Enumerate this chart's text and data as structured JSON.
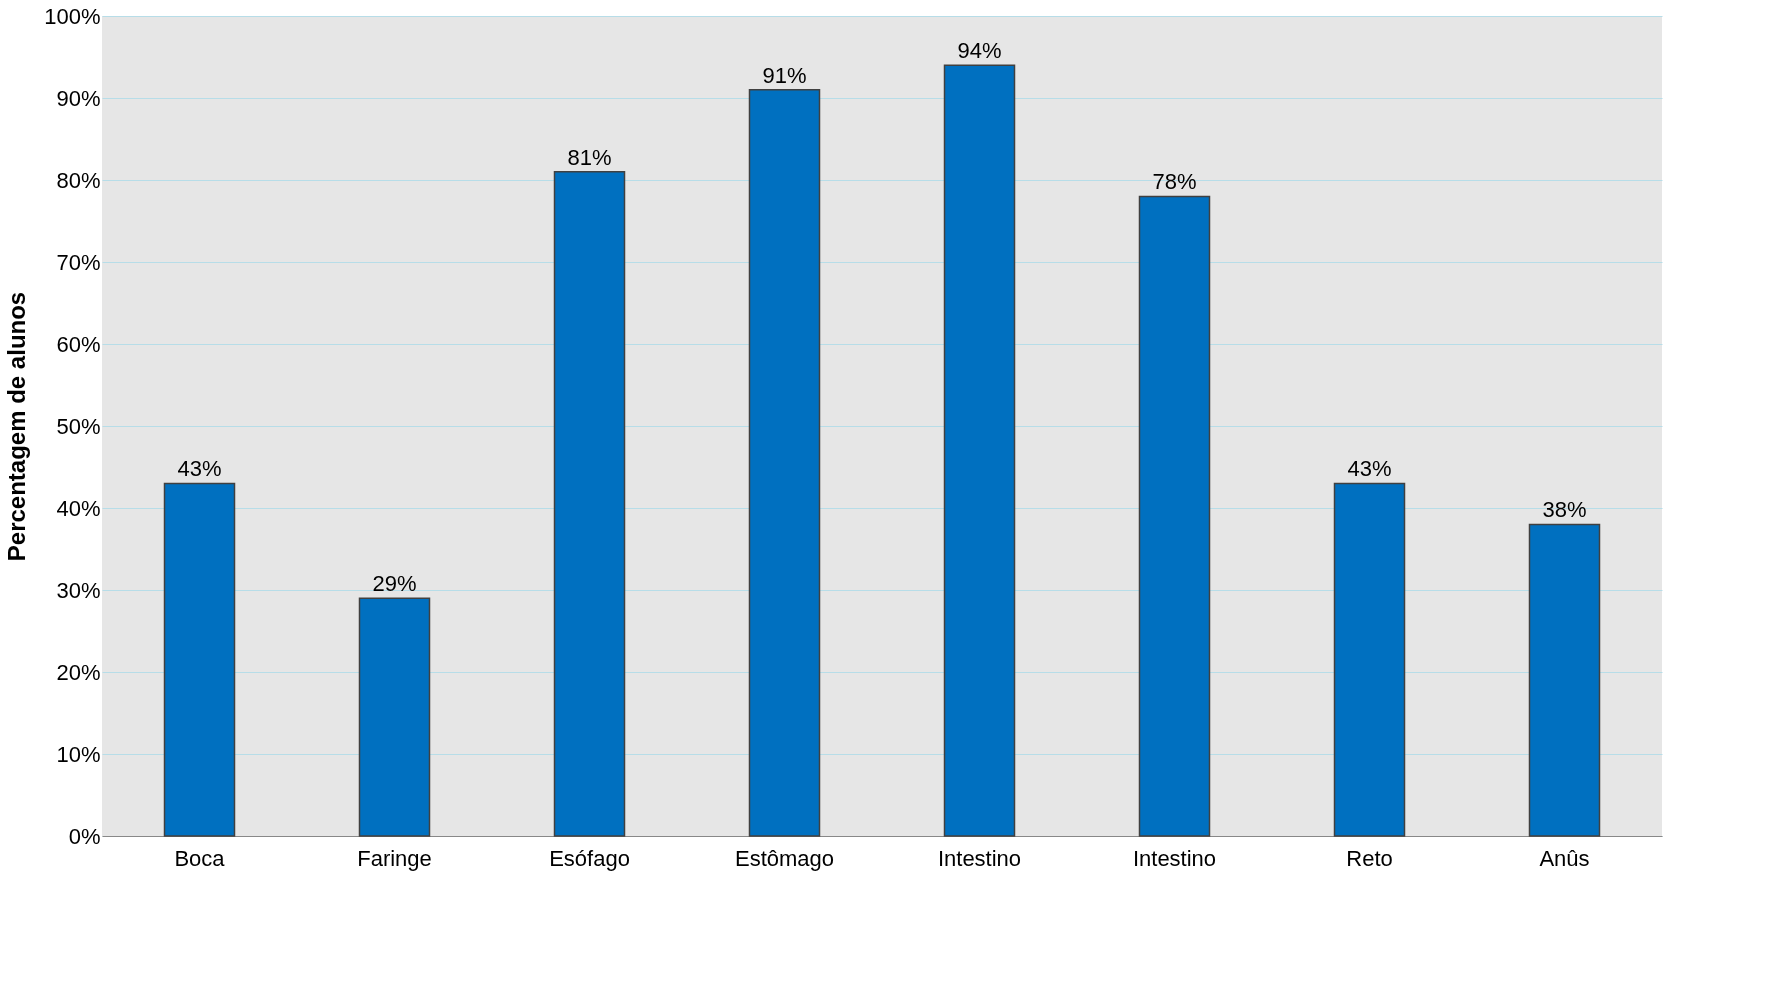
{
  "chart_data": {
    "type": "bar",
    "ylabel": "Percentagem de alunos",
    "categories": [
      "Boca",
      "Faringe",
      "Esófago",
      "Estômago",
      "Intestino",
      "Intestino",
      "Reto",
      "Anûs"
    ],
    "values": [
      43,
      29,
      81,
      91,
      94,
      78,
      43,
      38
    ],
    "color": "#0070c0",
    "value_labels": [
      "43%",
      "29%",
      "81%",
      "91%",
      "94%",
      "78%",
      "43%",
      "38%"
    ],
    "ylim": [
      0,
      100
    ],
    "yticks": [
      {
        "value": 0,
        "label": "0%"
      },
      {
        "value": 10,
        "label": "10%"
      },
      {
        "value": 20,
        "label": "20%"
      },
      {
        "value": 30,
        "label": "30%"
      },
      {
        "value": 40,
        "label": "40%"
      },
      {
        "value": 50,
        "label": "50%"
      },
      {
        "value": 60,
        "label": "60%"
      },
      {
        "value": 70,
        "label": "70%"
      },
      {
        "value": 80,
        "label": "80%"
      },
      {
        "value": 90,
        "label": "90%"
      },
      {
        "value": 100,
        "label": "100%"
      }
    ],
    "grid": "y"
  }
}
